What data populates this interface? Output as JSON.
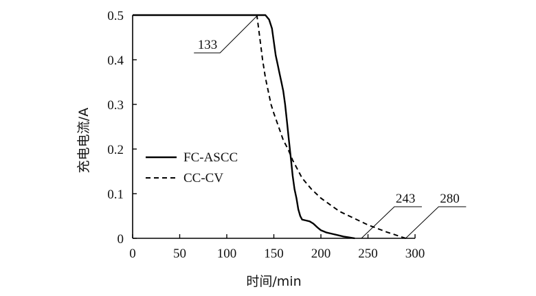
{
  "chart_data": {
    "type": "line",
    "xlabel": "时间/min",
    "ylabel": "充电电流/A",
    "xlim": [
      0,
      300
    ],
    "ylim": [
      0,
      0.5
    ],
    "xticks": [
      0,
      50,
      100,
      150,
      200,
      250,
      300
    ],
    "yticks": [
      0,
      0.1,
      0.2,
      0.3,
      0.4,
      0.5
    ],
    "xtick_labels": [
      "0",
      "50",
      "100",
      "150",
      "200",
      "250",
      "300"
    ],
    "ytick_labels": [
      "0",
      "0.1",
      "0.2",
      "0.3",
      "0.4",
      "0.5"
    ],
    "grid": false,
    "legend": {
      "position": "middle-left",
      "entries": [
        {
          "label": "FC-ASCC",
          "style": "solid"
        },
        {
          "label": "CC-CV",
          "style": "dashed"
        }
      ]
    },
    "series": [
      {
        "name": "FC-ASCC",
        "style": "solid",
        "color": "#000000",
        "x": [
          0,
          141,
          145,
          148,
          150,
          152,
          154,
          156,
          158,
          160,
          162,
          164,
          166,
          168,
          170,
          172,
          174,
          176,
          178,
          180,
          184,
          188,
          192,
          196,
          200,
          206,
          212,
          218,
          224,
          230,
          236
        ],
        "y": [
          0.5,
          0.5,
          0.49,
          0.47,
          0.44,
          0.41,
          0.39,
          0.37,
          0.35,
          0.33,
          0.3,
          0.26,
          0.22,
          0.18,
          0.14,
          0.11,
          0.09,
          0.065,
          0.05,
          0.042,
          0.04,
          0.038,
          0.033,
          0.025,
          0.018,
          0.013,
          0.01,
          0.007,
          0.004,
          0.002,
          0
        ]
      },
      {
        "name": "CC-CV",
        "style": "dashed",
        "color": "#000000",
        "x": [
          0,
          132,
          135,
          138,
          141,
          144,
          147,
          150,
          155,
          160,
          165,
          170,
          175,
          180,
          190,
          200,
          210,
          220,
          230,
          240,
          250,
          260,
          270,
          280,
          290
        ],
        "y": [
          0.5,
          0.5,
          0.45,
          0.4,
          0.36,
          0.33,
          0.3,
          0.28,
          0.25,
          0.22,
          0.2,
          0.175,
          0.155,
          0.135,
          0.11,
          0.09,
          0.075,
          0.06,
          0.05,
          0.04,
          0.03,
          0.022,
          0.014,
          0.007,
          0
        ]
      }
    ],
    "annotations": [
      {
        "text": "133",
        "x": 133,
        "y": 0.5
      },
      {
        "text": "243",
        "x": 243,
        "y": 0
      },
      {
        "text": "280",
        "x": 290,
        "y": 0
      }
    ]
  }
}
